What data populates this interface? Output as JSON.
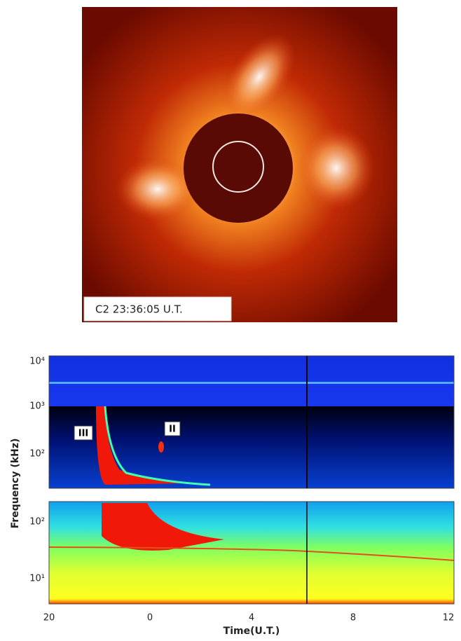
{
  "image": {
    "caption": "C2 23:36:05 U.T."
  },
  "spectrogram": {
    "y_label": "Frequency (kHz)",
    "x_label": "Time(U.T.)",
    "x_ticks": [
      20,
      0,
      4,
      8,
      12
    ],
    "upper_panel": {
      "y_ticks": [
        "10⁴",
        "10³",
        "10²"
      ],
      "annotations": [
        "III",
        "II"
      ]
    },
    "lower_panel": {
      "y_ticks": [
        "10²",
        "10¹"
      ]
    }
  }
}
